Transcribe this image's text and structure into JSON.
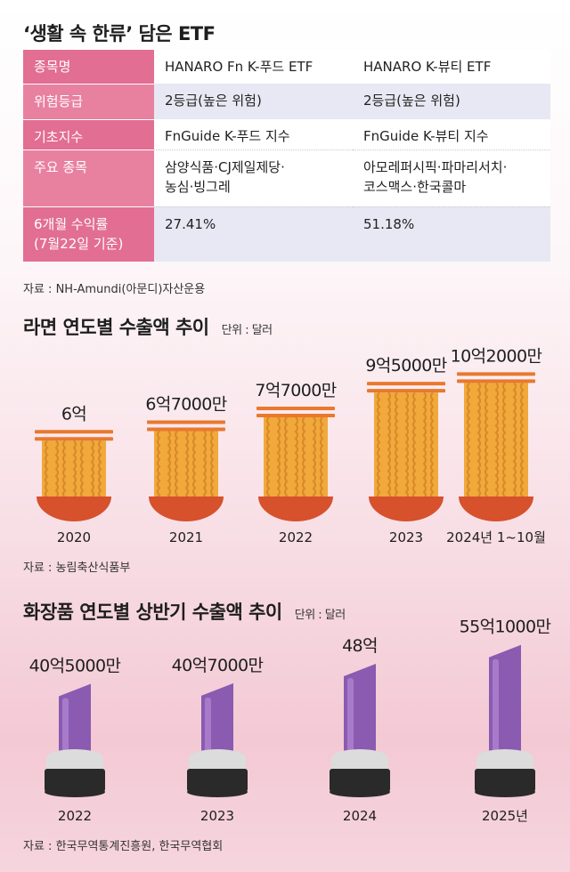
{
  "table": {
    "title": "‘생활 속 한류’ 담은 ETF",
    "rows": [
      {
        "header": "종목명",
        "c1": [
          "HANARO Fn K-푸드 ETF"
        ],
        "c2": [
          "HANARO K-뷰티 ETF"
        ]
      },
      {
        "header": "위험등급",
        "c1": [
          "2등급(높은 위험)"
        ],
        "c2": [
          "2등급(높은 위험)"
        ]
      },
      {
        "header": "기초지수",
        "c1": [
          "FnGuide K-푸드 지수"
        ],
        "c2": [
          "FnGuide K-뷰티 지수"
        ]
      },
      {
        "header": "주요 종목",
        "c1": [
          "삼양식품·CJ제일제당·",
          "농심·빙그레"
        ],
        "c2": [
          "아모레퍼시픽·파마리서치·",
          "코스맥스·한국콜마"
        ]
      },
      {
        "header": "6개월 수익률\n(7월22일 기준)",
        "header_lines": [
          "6개월 수익률",
          "(7월22일 기준)"
        ],
        "c1": [
          "27.41%"
        ],
        "c2": [
          "51.18%"
        ]
      }
    ],
    "source": "자료 : NH-Amundi(아문디)자산운용"
  },
  "ramen": {
    "title": "라면 연도별 수출액 추이",
    "unit": "단위 : 달러",
    "source": "자료 : 농림축산식품부"
  },
  "cosmetics": {
    "title": "화장품 연도별 상반기 수출액 추이",
    "unit": "단위 : 달러",
    "source": "자료 : 한국무역통계진흥원, 한국무역협회"
  },
  "colors": {
    "header_pink": "#e26e93",
    "band": "#e7e8f3",
    "noodle": "#f0a93a",
    "noodle_dark": "#d9892a",
    "bowl": "#d6512c",
    "chopstick": "#e8792e",
    "lipstick": "#8a5bb0",
    "lipstick_light": "#a77bc9",
    "case_dark": "#2a2a2a",
    "case_silver": "#dcdcdc"
  },
  "chart_data": [
    {
      "type": "bar",
      "title": "라면 연도별 수출액 추이",
      "unit": "단위 : 달러",
      "categories": [
        "2020",
        "2021",
        "2022",
        "2023",
        "2024년 1~10월"
      ],
      "values": [
        600000000,
        670000000,
        770000000,
        950000000,
        1020000000
      ],
      "labels": [
        "6억",
        "6억7000만",
        "7억7000만",
        "9억5000만",
        "10억2000만"
      ]
    },
    {
      "type": "bar",
      "title": "화장품 연도별 상반기 수출액 추이",
      "unit": "단위 : 달러",
      "categories": [
        "2022",
        "2023",
        "2024",
        "2025년"
      ],
      "values": [
        4050000000,
        4070000000,
        4800000000,
        5510000000
      ],
      "labels": [
        "40억5000만",
        "40억7000만",
        "48억",
        "55억1000만"
      ]
    }
  ]
}
